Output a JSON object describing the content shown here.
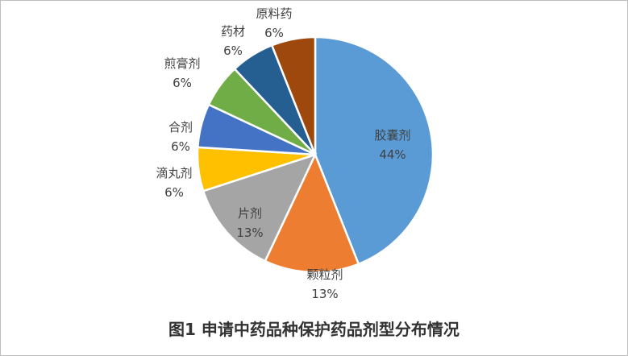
{
  "chart_data": {
    "type": "pie",
    "title": "图1  申请中药品种保护药品剂型分布情况",
    "start_angle_deg": 0,
    "direction": "clockwise",
    "slices": [
      {
        "name": "胶囊剂",
        "value": 44,
        "label": "44%",
        "color": "#5b9bd5"
      },
      {
        "name": "颗粒剂",
        "value": 13,
        "label": "13%",
        "color": "#ed7d31"
      },
      {
        "name": "片剂",
        "value": 13,
        "label": "13%",
        "color": "#a5a5a5"
      },
      {
        "name": "滴丸剂",
        "value": 6,
        "label": "6%",
        "color": "#ffc000"
      },
      {
        "name": "合剂",
        "value": 6,
        "label": "6%",
        "color": "#4472c4"
      },
      {
        "name": "煎膏剂",
        "value": 6,
        "label": "6%",
        "color": "#70ad47"
      },
      {
        "name": "药材",
        "value": 6,
        "label": "6%",
        "color": "#255e91"
      },
      {
        "name": "原料药",
        "value": 6,
        "label": "6%",
        "color": "#9e480e"
      }
    ]
  }
}
